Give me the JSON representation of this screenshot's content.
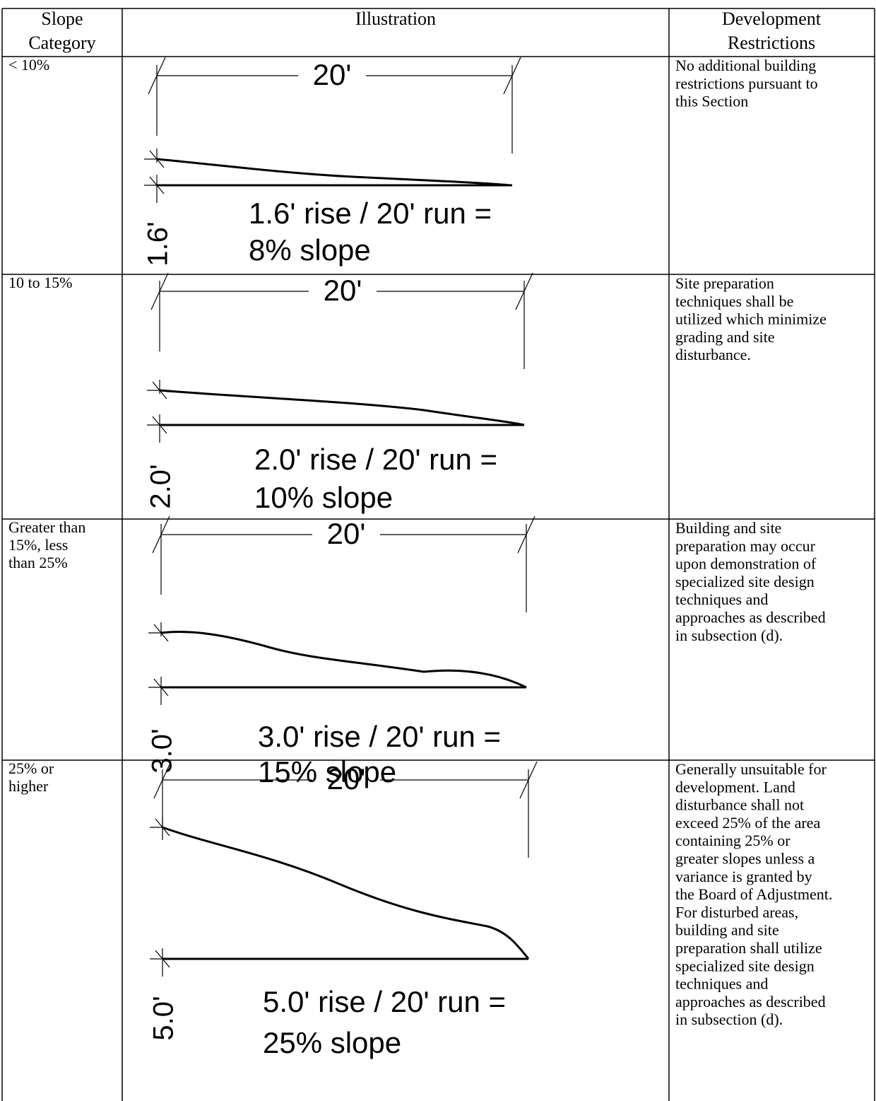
{
  "table": {
    "headers": [
      [
        "Slope",
        "Category"
      ],
      [
        "Illustration"
      ],
      [
        "Development",
        "Restrictions"
      ]
    ],
    "rows": [
      {
        "category": [
          "< 10%"
        ],
        "illustration": {
          "run": "20'",
          "rise": "1.6'",
          "equation": "1.6' rise / 20' run =",
          "result": "8% slope"
        },
        "restrictions": [
          "No additional building",
          "restrictions pursuant to",
          "this Section"
        ]
      },
      {
        "category": [
          "10 to 15%"
        ],
        "illustration": {
          "run": "20'",
          "rise": "2.0'",
          "equation": "2.0' rise / 20' run =",
          "result": "10% slope"
        },
        "restrictions": [
          "Site preparation",
          "techniques shall be",
          "utilized which minimize",
          "grading and site",
          "disturbance."
        ]
      },
      {
        "category": [
          "Greater than",
          "15%, less",
          "than 25%"
        ],
        "illustration": {
          "run": "20'",
          "rise": "3.0'",
          "equation": "3.0' rise / 20' run =",
          "result": "15% slope"
        },
        "restrictions": [
          "Building and site",
          "preparation may occur",
          "upon demonstration of",
          "specialized site design",
          "techniques and",
          "approaches as described",
          "in subsection (d)."
        ]
      },
      {
        "category": [
          "25% or",
          "higher"
        ],
        "illustration": {
          "run": "20'",
          "rise": "5.0'",
          "equation": "5.0' rise / 20' run =",
          "result": "25% slope"
        },
        "restrictions": [
          "Generally unsuitable for",
          "development.  Land",
          "disturbance shall not",
          "exceed 25% of the area",
          "containing 25% or",
          "greater slopes unless a",
          "variance is granted by",
          "the Board of Adjustment.",
          "For disturbed areas,",
          "building and site",
          "preparation shall utilize",
          "specialized site design",
          "techniques and",
          "approaches as described",
          "in subsection (d)."
        ]
      }
    ]
  }
}
